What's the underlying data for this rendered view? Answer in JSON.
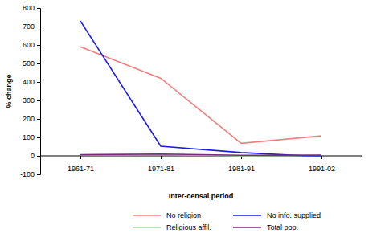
{
  "chart_data": {
    "type": "line",
    "x_label": "Inter-censal period",
    "y_label": "% change",
    "categories": [
      "1961-71",
      "1971-81",
      "1981-91",
      "1991-02"
    ],
    "series": [
      {
        "name": "No religion",
        "color": "#f08080",
        "values": [
          590,
          420,
          68,
          108
        ]
      },
      {
        "name": "No info. supplied",
        "color": "#1a1ae6",
        "values": [
          730,
          52,
          18,
          -5
        ]
      },
      {
        "name": "Religious affil.",
        "color": "#99d699",
        "values": [
          5,
          8,
          0,
          2
        ]
      },
      {
        "name": "Total pop.",
        "color": "#7a2a7a",
        "values": [
          6,
          10,
          3,
          4
        ]
      }
    ],
    "ylim": [
      -100,
      800
    ],
    "yticks": [
      -100,
      0,
      100,
      200,
      300,
      400,
      500,
      600,
      700,
      800
    ],
    "grid": false,
    "legend": "bottom"
  }
}
